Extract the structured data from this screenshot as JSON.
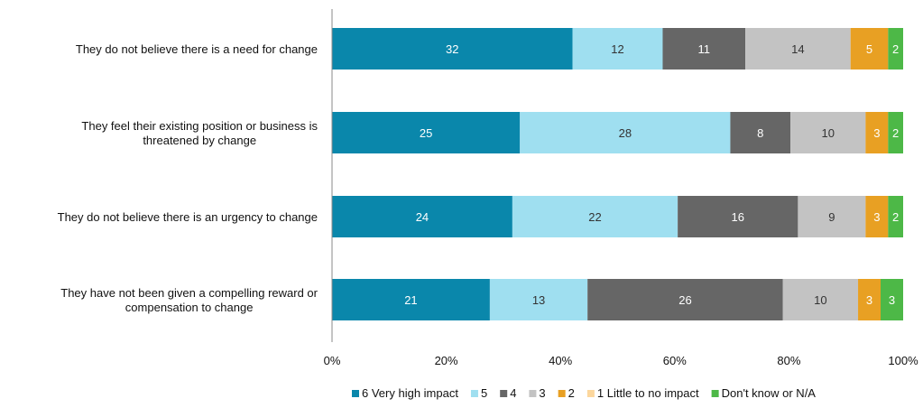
{
  "chart_data": {
    "type": "bar",
    "orientation": "horizontal",
    "stacked": "100%",
    "categories": [
      "They do not believe there is a need for change",
      "They feel their existing position or business is threatened by change",
      "They do not believe there is an urgency to change",
      "They have not been given a compelling reward or compensation to change"
    ],
    "category_lines": [
      [
        "They do not believe there is a need for change"
      ],
      [
        "They feel their existing position or business is",
        "threatened by change"
      ],
      [
        "They do not believe there is an urgency to change"
      ],
      [
        "They have not been given a compelling reward or",
        "compensation to change"
      ]
    ],
    "series": [
      {
        "name": "6 Very high impact",
        "color": "#0a87ab",
        "label_color": "#ffffff",
        "values": [
          32,
          25,
          24,
          21
        ]
      },
      {
        "name": "5",
        "color": "#9fdff0",
        "label_color": "#333333",
        "values": [
          12,
          28,
          22,
          13
        ]
      },
      {
        "name": "4",
        "color": "#666666",
        "label_color": "#ffffff",
        "values": [
          11,
          8,
          16,
          26
        ]
      },
      {
        "name": "3",
        "color": "#c3c3c3",
        "label_color": "#333333",
        "values": [
          14,
          10,
          9,
          10
        ]
      },
      {
        "name": "2",
        "color": "#e8a023",
        "label_color": "#ffffff",
        "values": [
          5,
          3,
          3,
          3
        ]
      },
      {
        "name": "1 Little to no impact",
        "color": "#fcd79d",
        "label_color": "#333333",
        "values": [
          0,
          0,
          0,
          0
        ]
      },
      {
        "name": "Don't know or N/A",
        "color": "#4db847",
        "label_color": "#ffffff",
        "values": [
          2,
          2,
          2,
          3
        ]
      }
    ],
    "x_ticks": [
      "0%",
      "20%",
      "40%",
      "60%",
      "80%",
      "100%"
    ],
    "xlim": [
      0,
      100
    ],
    "grid": false,
    "legend_position": "bottom"
  }
}
